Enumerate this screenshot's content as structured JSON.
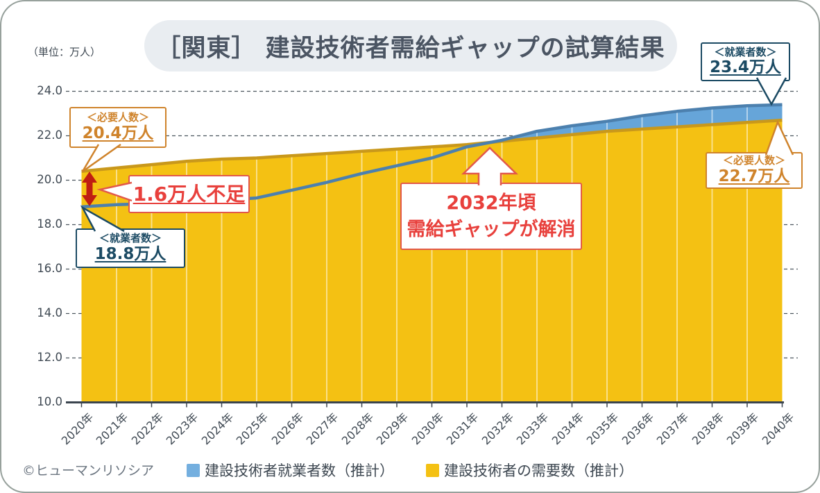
{
  "card": {
    "title": "［関東］ 建設技術者需給ギャップの試算結果",
    "unit_label": "（単位：万人）",
    "copyright": "©ヒューマンリソシア"
  },
  "colors": {
    "demand_fill": "#F4C113",
    "demand_line": "#C9981B",
    "workers_fill": "#66A5D9",
    "workers_legend": "#74AFDF",
    "workers_line": "#4C80AE",
    "annotation_orange": "#CF832B",
    "annotation_blue": "#1B4A63",
    "annotation_red_text": "#E8403C",
    "annotation_red_line": "#E2584A",
    "gap_arrow_red": "#C01E12",
    "axis_text": "#3E4852"
  },
  "chart_data": {
    "type": "area",
    "title": "［関東］ 建設技術者需給ギャップの試算結果",
    "xlabel": "",
    "ylabel": "万人",
    "ylim": [
      10.0,
      24.0
    ],
    "y_ticks": [
      10.0,
      12.0,
      14.0,
      16.0,
      18.0,
      20.0,
      22.0,
      24.0
    ],
    "grid": "horizontal-dashed",
    "legend_position": "bottom",
    "x": [
      2020,
      2021,
      2022,
      2023,
      2024,
      2025,
      2026,
      2027,
      2028,
      2029,
      2030,
      2031,
      2032,
      2033,
      2034,
      2035,
      2036,
      2037,
      2038,
      2039,
      2040
    ],
    "x_tick_suffix": "年",
    "series": [
      {
        "name": "建設技術者就業者数（推計）",
        "values": [
          18.8,
          18.9,
          18.95,
          19.0,
          19.1,
          19.2,
          19.55,
          19.9,
          20.3,
          20.65,
          21.0,
          21.5,
          21.8,
          22.2,
          22.45,
          22.65,
          22.9,
          23.1,
          23.25,
          23.35,
          23.4
        ]
      },
      {
        "name": "建設技術者の需要数（推計）",
        "values": [
          20.4,
          20.55,
          20.7,
          20.85,
          20.95,
          21.0,
          21.1,
          21.2,
          21.3,
          21.4,
          21.5,
          21.6,
          21.75,
          21.9,
          22.05,
          22.2,
          22.3,
          22.4,
          22.5,
          22.6,
          22.7
        ]
      }
    ]
  },
  "annotations": {
    "required_2020": {
      "label": "＜必要人数＞",
      "value": "20.4万人"
    },
    "workers_2020": {
      "label": "＜就業者数＞",
      "value": "18.8万人"
    },
    "gap_2020": {
      "text": "1.6万人不足"
    },
    "crossover": {
      "line1": "2032年頃",
      "line2": "需給ギャップが解消"
    },
    "workers_2040": {
      "label": "＜就業者数＞",
      "value": "23.4万人"
    },
    "required_2040": {
      "label": "＜必要人数＞",
      "value": "22.7万人"
    }
  }
}
